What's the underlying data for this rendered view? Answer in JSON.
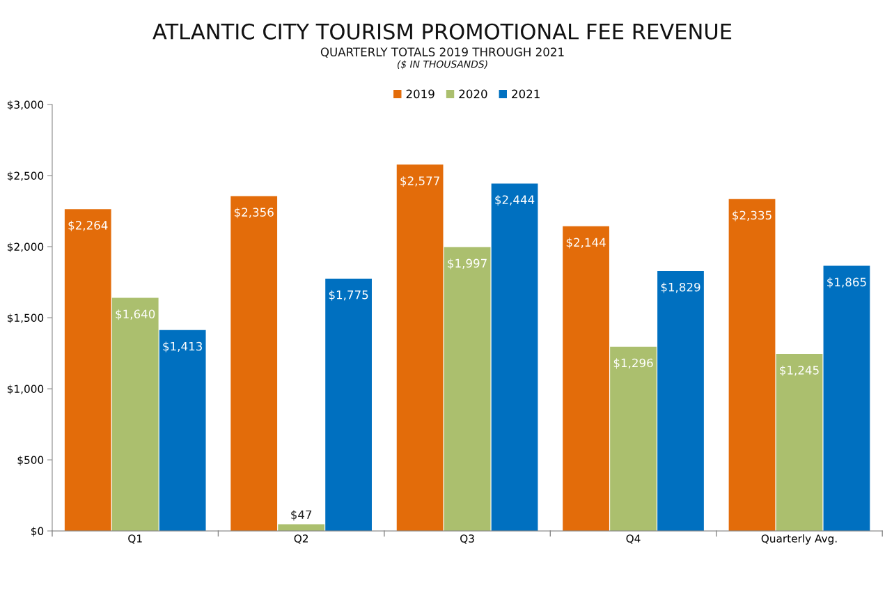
{
  "chart_data": {
    "type": "bar",
    "title": "ATLANTIC CITY TOURISM PROMOTIONAL FEE REVENUE",
    "subtitle": "QUARTERLY TOTALS 2019 THROUGH 2021",
    "annotations": [
      "($ IN THOUSANDS)"
    ],
    "categories": [
      "Q1",
      "Q2",
      "Q3",
      "Q4",
      "Quarterly Avg."
    ],
    "series": [
      {
        "name": "2019",
        "color": "#e36c0a",
        "values": [
          2264,
          2356,
          2577,
          2144,
          2335
        ],
        "value_labels": [
          "$2,264",
          "$2,356",
          "$2,577",
          "$2,144",
          "$2,335"
        ]
      },
      {
        "name": "2020",
        "color": "#abbf6e",
        "values": [
          1640,
          47,
          1997,
          1296,
          1245
        ],
        "value_labels": [
          "$1,640",
          "$47",
          "$1,997",
          "$1,296",
          "$1,245"
        ]
      },
      {
        "name": "2021",
        "color": "#0070c0",
        "values": [
          1413,
          1775,
          2444,
          1829,
          1865
        ],
        "value_labels": [
          "$1,413",
          "$1,775",
          "$2,444",
          "$1,829",
          "$1,865"
        ]
      }
    ],
    "ylim": [
      0,
      3000
    ],
    "yticks": [
      {
        "value": 0,
        "label": "$0"
      },
      {
        "value": 500,
        "label": "$500"
      },
      {
        "value": 1000,
        "label": "$1,000"
      },
      {
        "value": 1500,
        "label": "$1,500"
      },
      {
        "value": 2000,
        "label": "$2,000"
      },
      {
        "value": 2500,
        "label": "$2,500"
      },
      {
        "value": 3000,
        "label": "$3,000"
      }
    ],
    "grid": false,
    "legend": "top"
  }
}
